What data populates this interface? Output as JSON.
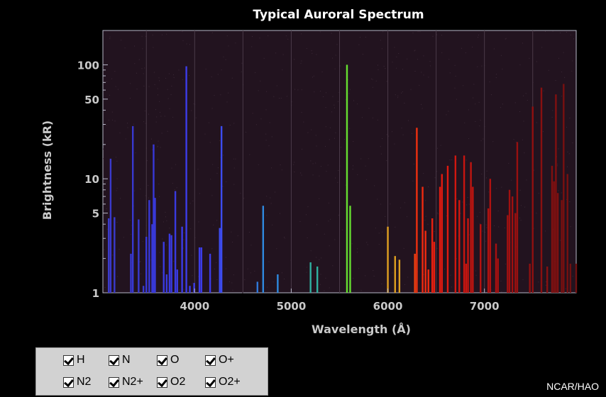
{
  "chart_data": {
    "type": "bar",
    "title": "Typical Auroral Spectrum",
    "xlabel": "Wavelength (Å)",
    "ylabel": "Brightness (kR)",
    "xlim": [
      3050,
      7950
    ],
    "ylim": [
      1,
      200
    ],
    "yscale": "log",
    "xticks": [
      4000,
      5000,
      6000,
      7000
    ],
    "yticks": [
      1,
      5,
      10,
      50,
      100
    ],
    "grid": true,
    "lines": [
      {
        "x": 3110,
        "y": 4.5,
        "color": "#3a3acc"
      },
      {
        "x": 3130,
        "y": 15,
        "color": "#3a3acc"
      },
      {
        "x": 3170,
        "y": 4.6,
        "color": "#3a3acc"
      },
      {
        "x": 3340,
        "y": 2.2,
        "color": "#3838d0"
      },
      {
        "x": 3360,
        "y": 29,
        "color": "#3838d0"
      },
      {
        "x": 3420,
        "y": 4.4,
        "color": "#3838d0"
      },
      {
        "x": 3470,
        "y": 1.15,
        "color": "#3838d0"
      },
      {
        "x": 3500,
        "y": 3.1,
        "color": "#3838d8"
      },
      {
        "x": 3530,
        "y": 6.5,
        "color": "#3838d8"
      },
      {
        "x": 3560,
        "y": 4.0,
        "color": "#3838d8"
      },
      {
        "x": 3575,
        "y": 20,
        "color": "#3838d8"
      },
      {
        "x": 3590,
        "y": 6.8,
        "color": "#3838d8"
      },
      {
        "x": 3680,
        "y": 2.8,
        "color": "#3a3ae0"
      },
      {
        "x": 3710,
        "y": 1.45,
        "color": "#3a3ae0"
      },
      {
        "x": 3740,
        "y": 3.3,
        "color": "#3a3ae0"
      },
      {
        "x": 3760,
        "y": 3.2,
        "color": "#3a3ae0"
      },
      {
        "x": 3800,
        "y": 7.8,
        "color": "#3a3ae0"
      },
      {
        "x": 3820,
        "y": 1.6,
        "color": "#3a3ae0"
      },
      {
        "x": 3870,
        "y": 3.8,
        "color": "#3c3ce8"
      },
      {
        "x": 3914,
        "y": 97,
        "color": "#3c3ce8"
      },
      {
        "x": 3950,
        "y": 1.15,
        "color": "#3c3ce8"
      },
      {
        "x": 3995,
        "y": 1.22,
        "color": "#3c3ce8"
      },
      {
        "x": 4050,
        "y": 2.5,
        "color": "#3c3ce8"
      },
      {
        "x": 4070,
        "y": 2.5,
        "color": "#3c3ce8"
      },
      {
        "x": 4160,
        "y": 2.2,
        "color": "#3c3ce8"
      },
      {
        "x": 4260,
        "y": 3.7,
        "color": "#3c4cf0"
      },
      {
        "x": 4278,
        "y": 29,
        "color": "#3c4cf0"
      },
      {
        "x": 4650,
        "y": 1.25,
        "color": "#2f78d8"
      },
      {
        "x": 4709,
        "y": 5.8,
        "color": "#2f8ae0"
      },
      {
        "x": 4860,
        "y": 1.45,
        "color": "#2f8ae0"
      },
      {
        "x": 5200,
        "y": 1.85,
        "color": "#2fb0a0"
      },
      {
        "x": 5270,
        "y": 1.7,
        "color": "#2fb0a0"
      },
      {
        "x": 5577,
        "y": 100,
        "color": "#66e030"
      },
      {
        "x": 5610,
        "y": 5.8,
        "color": "#66e030"
      },
      {
        "x": 6000,
        "y": 3.8,
        "color": "#e0a020"
      },
      {
        "x": 6075,
        "y": 2.1,
        "color": "#e0a020"
      },
      {
        "x": 6120,
        "y": 1.95,
        "color": "#e0a020"
      },
      {
        "x": 6280,
        "y": 2.2,
        "color": "#f04010"
      },
      {
        "x": 6300,
        "y": 28,
        "color": "#f03010"
      },
      {
        "x": 6360,
        "y": 8.5,
        "color": "#f02a10"
      },
      {
        "x": 6390,
        "y": 3.5,
        "color": "#f02a10"
      },
      {
        "x": 6420,
        "y": 1.6,
        "color": "#f02a10"
      },
      {
        "x": 6460,
        "y": 4.5,
        "color": "#e82010"
      },
      {
        "x": 6480,
        "y": 2.8,
        "color": "#e82010"
      },
      {
        "x": 6540,
        "y": 8.5,
        "color": "#e01a10"
      },
      {
        "x": 6560,
        "y": 11,
        "color": "#e01a10"
      },
      {
        "x": 6620,
        "y": 13,
        "color": "#e01a10"
      },
      {
        "x": 6700,
        "y": 16,
        "color": "#d01810"
      },
      {
        "x": 6740,
        "y": 6.5,
        "color": "#d01810"
      },
      {
        "x": 6790,
        "y": 16,
        "color": "#c81510"
      },
      {
        "x": 6810,
        "y": 1.8,
        "color": "#c81510"
      },
      {
        "x": 6830,
        "y": 4.5,
        "color": "#c81510"
      },
      {
        "x": 6860,
        "y": 14,
        "color": "#c01510"
      },
      {
        "x": 6880,
        "y": 8.5,
        "color": "#c01510"
      },
      {
        "x": 6960,
        "y": 4.0,
        "color": "#b81210"
      },
      {
        "x": 7040,
        "y": 5.5,
        "color": "#b01210"
      },
      {
        "x": 7060,
        "y": 10,
        "color": "#b01210"
      },
      {
        "x": 7120,
        "y": 2.7,
        "color": "#a81010"
      },
      {
        "x": 7140,
        "y": 2.0,
        "color": "#a81010"
      },
      {
        "x": 7240,
        "y": 4.8,
        "color": "#a01010"
      },
      {
        "x": 7260,
        "y": 8,
        "color": "#a01010"
      },
      {
        "x": 7290,
        "y": 7,
        "color": "#a01010"
      },
      {
        "x": 7320,
        "y": 5.0,
        "color": "#981010"
      },
      {
        "x": 7340,
        "y": 21,
        "color": "#981010"
      },
      {
        "x": 7470,
        "y": 1.8,
        "color": "#901010"
      },
      {
        "x": 7500,
        "y": 43,
        "color": "#901010"
      },
      {
        "x": 7590,
        "y": 63,
        "color": "#881010"
      },
      {
        "x": 7650,
        "y": 1.7,
        "color": "#881010"
      },
      {
        "x": 7700,
        "y": 13,
        "color": "#801010"
      },
      {
        "x": 7720,
        "y": 9.5,
        "color": "#801010"
      },
      {
        "x": 7740,
        "y": 55,
        "color": "#801010"
      },
      {
        "x": 7760,
        "y": 7.5,
        "color": "#801010"
      },
      {
        "x": 7800,
        "y": 6.5,
        "color": "#781010"
      },
      {
        "x": 7820,
        "y": 68,
        "color": "#781010"
      },
      {
        "x": 7860,
        "y": 11,
        "color": "#781010"
      },
      {
        "x": 7890,
        "y": 1.8,
        "color": "#701010"
      },
      {
        "x": 7950,
        "y": 1.8,
        "color": "#701010"
      }
    ]
  },
  "legend": {
    "items": [
      {
        "label": "H",
        "checked": true
      },
      {
        "label": "N",
        "checked": true
      },
      {
        "label": "O",
        "checked": true
      },
      {
        "label": "O+",
        "checked": true
      },
      {
        "label": "N2",
        "checked": true
      },
      {
        "label": "N2+",
        "checked": true
      },
      {
        "label": "O2",
        "checked": true
      },
      {
        "label": "O2+",
        "checked": true
      }
    ]
  },
  "credit": "NCAR/HAO",
  "colors": {
    "plot_background": "#22131f",
    "page_background": "#000000",
    "axis_text": "#c9c9c9"
  }
}
